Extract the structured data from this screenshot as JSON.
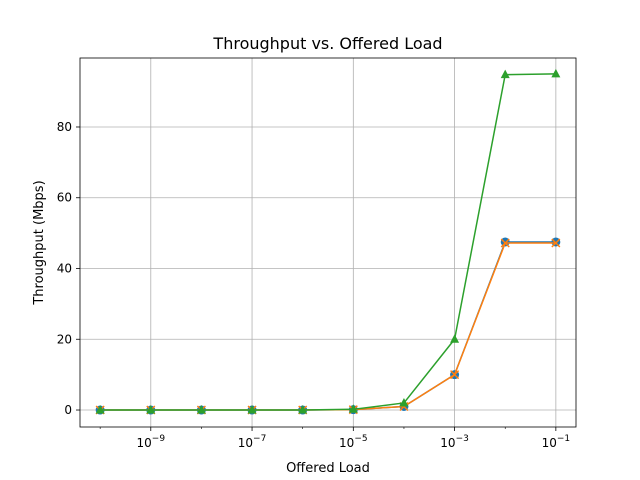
{
  "chart_data": {
    "type": "line",
    "title": "Throughput vs. Offered Load",
    "xlabel": "Offered Load",
    "ylabel": "Throughput (Mbps)",
    "xscale": "log",
    "x": [
      1e-10,
      1e-09,
      1e-08,
      1e-07,
      1e-06,
      1e-05,
      0.0001,
      0.001,
      0.01,
      0.1
    ],
    "xlim": [
      4e-11,
      0.25
    ],
    "ylim": [
      -4.8,
      99.5
    ],
    "grid": true,
    "x_ticks": [
      {
        "value": 1e-09,
        "base": "10",
        "exp": "−9"
      },
      {
        "value": 1e-07,
        "base": "10",
        "exp": "−7"
      },
      {
        "value": 1e-05,
        "base": "10",
        "exp": "−5"
      },
      {
        "value": 0.001,
        "base": "10",
        "exp": "−3"
      },
      {
        "value": 0.1,
        "base": "10",
        "exp": "−1"
      }
    ],
    "y_ticks": [
      {
        "value": 0,
        "label": "0"
      },
      {
        "value": 20,
        "label": "20"
      },
      {
        "value": 40,
        "label": "40"
      },
      {
        "value": 60,
        "label": "60"
      },
      {
        "value": 80,
        "label": "80"
      }
    ],
    "series": [
      {
        "color": "#1f77b4",
        "marker": "circle",
        "values": [
          0,
          0,
          0,
          0,
          0,
          0.1,
          1.0,
          10.0,
          47.5,
          47.5
        ]
      },
      {
        "color": "#ff7f0e",
        "marker": "x",
        "values": [
          0,
          0,
          0,
          0,
          0,
          0.1,
          1.0,
          10.0,
          47.2,
          47.2
        ]
      },
      {
        "color": "#2ca02c",
        "marker": "triangle",
        "values": [
          0,
          0,
          0,
          0,
          0,
          0.2,
          2.0,
          20.0,
          94.8,
          95.0
        ]
      }
    ]
  }
}
